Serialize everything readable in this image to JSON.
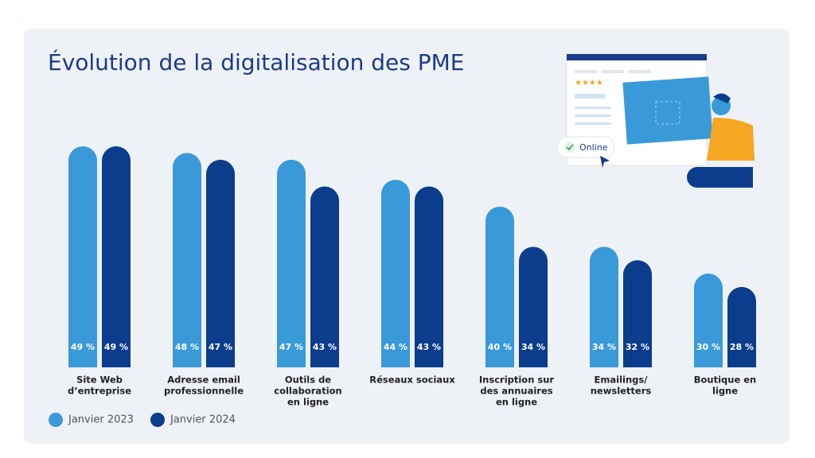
{
  "chart_data": {
    "type": "bar",
    "title": "Évolution de la digitalisation des PME",
    "categories": [
      [
        "Site Web",
        "d’entreprise"
      ],
      [
        "Adresse email",
        "professionnelle"
      ],
      [
        "Outils de",
        "collaboration",
        "en ligne"
      ],
      [
        "Réseaux sociaux"
      ],
      [
        "Inscription sur",
        "des annuaires",
        "en ligne"
      ],
      [
        "Emailings/",
        "newsletters"
      ],
      [
        "Boutique en",
        "ligne"
      ]
    ],
    "series": [
      {
        "name": "Janvier 2023",
        "color": "#3a9ad9",
        "values": [
          49,
          48,
          47,
          44,
          40,
          34,
          30
        ],
        "value_labels": [
          "49 %",
          "48 %",
          "47 %",
          "44 %",
          "40 %",
          "34 %",
          "30 %"
        ]
      },
      {
        "name": "Janvier 2024",
        "color": "#0c3d8c",
        "values": [
          49,
          47,
          43,
          43,
          34,
          32,
          28
        ],
        "value_labels": [
          "49 %",
          "47 %",
          "43 %",
          "43 %",
          "34 %",
          "32 %",
          "28 %"
        ]
      }
    ],
    "ylim": [
      16,
      49
    ]
  },
  "illustration": {
    "badge": "Online"
  }
}
